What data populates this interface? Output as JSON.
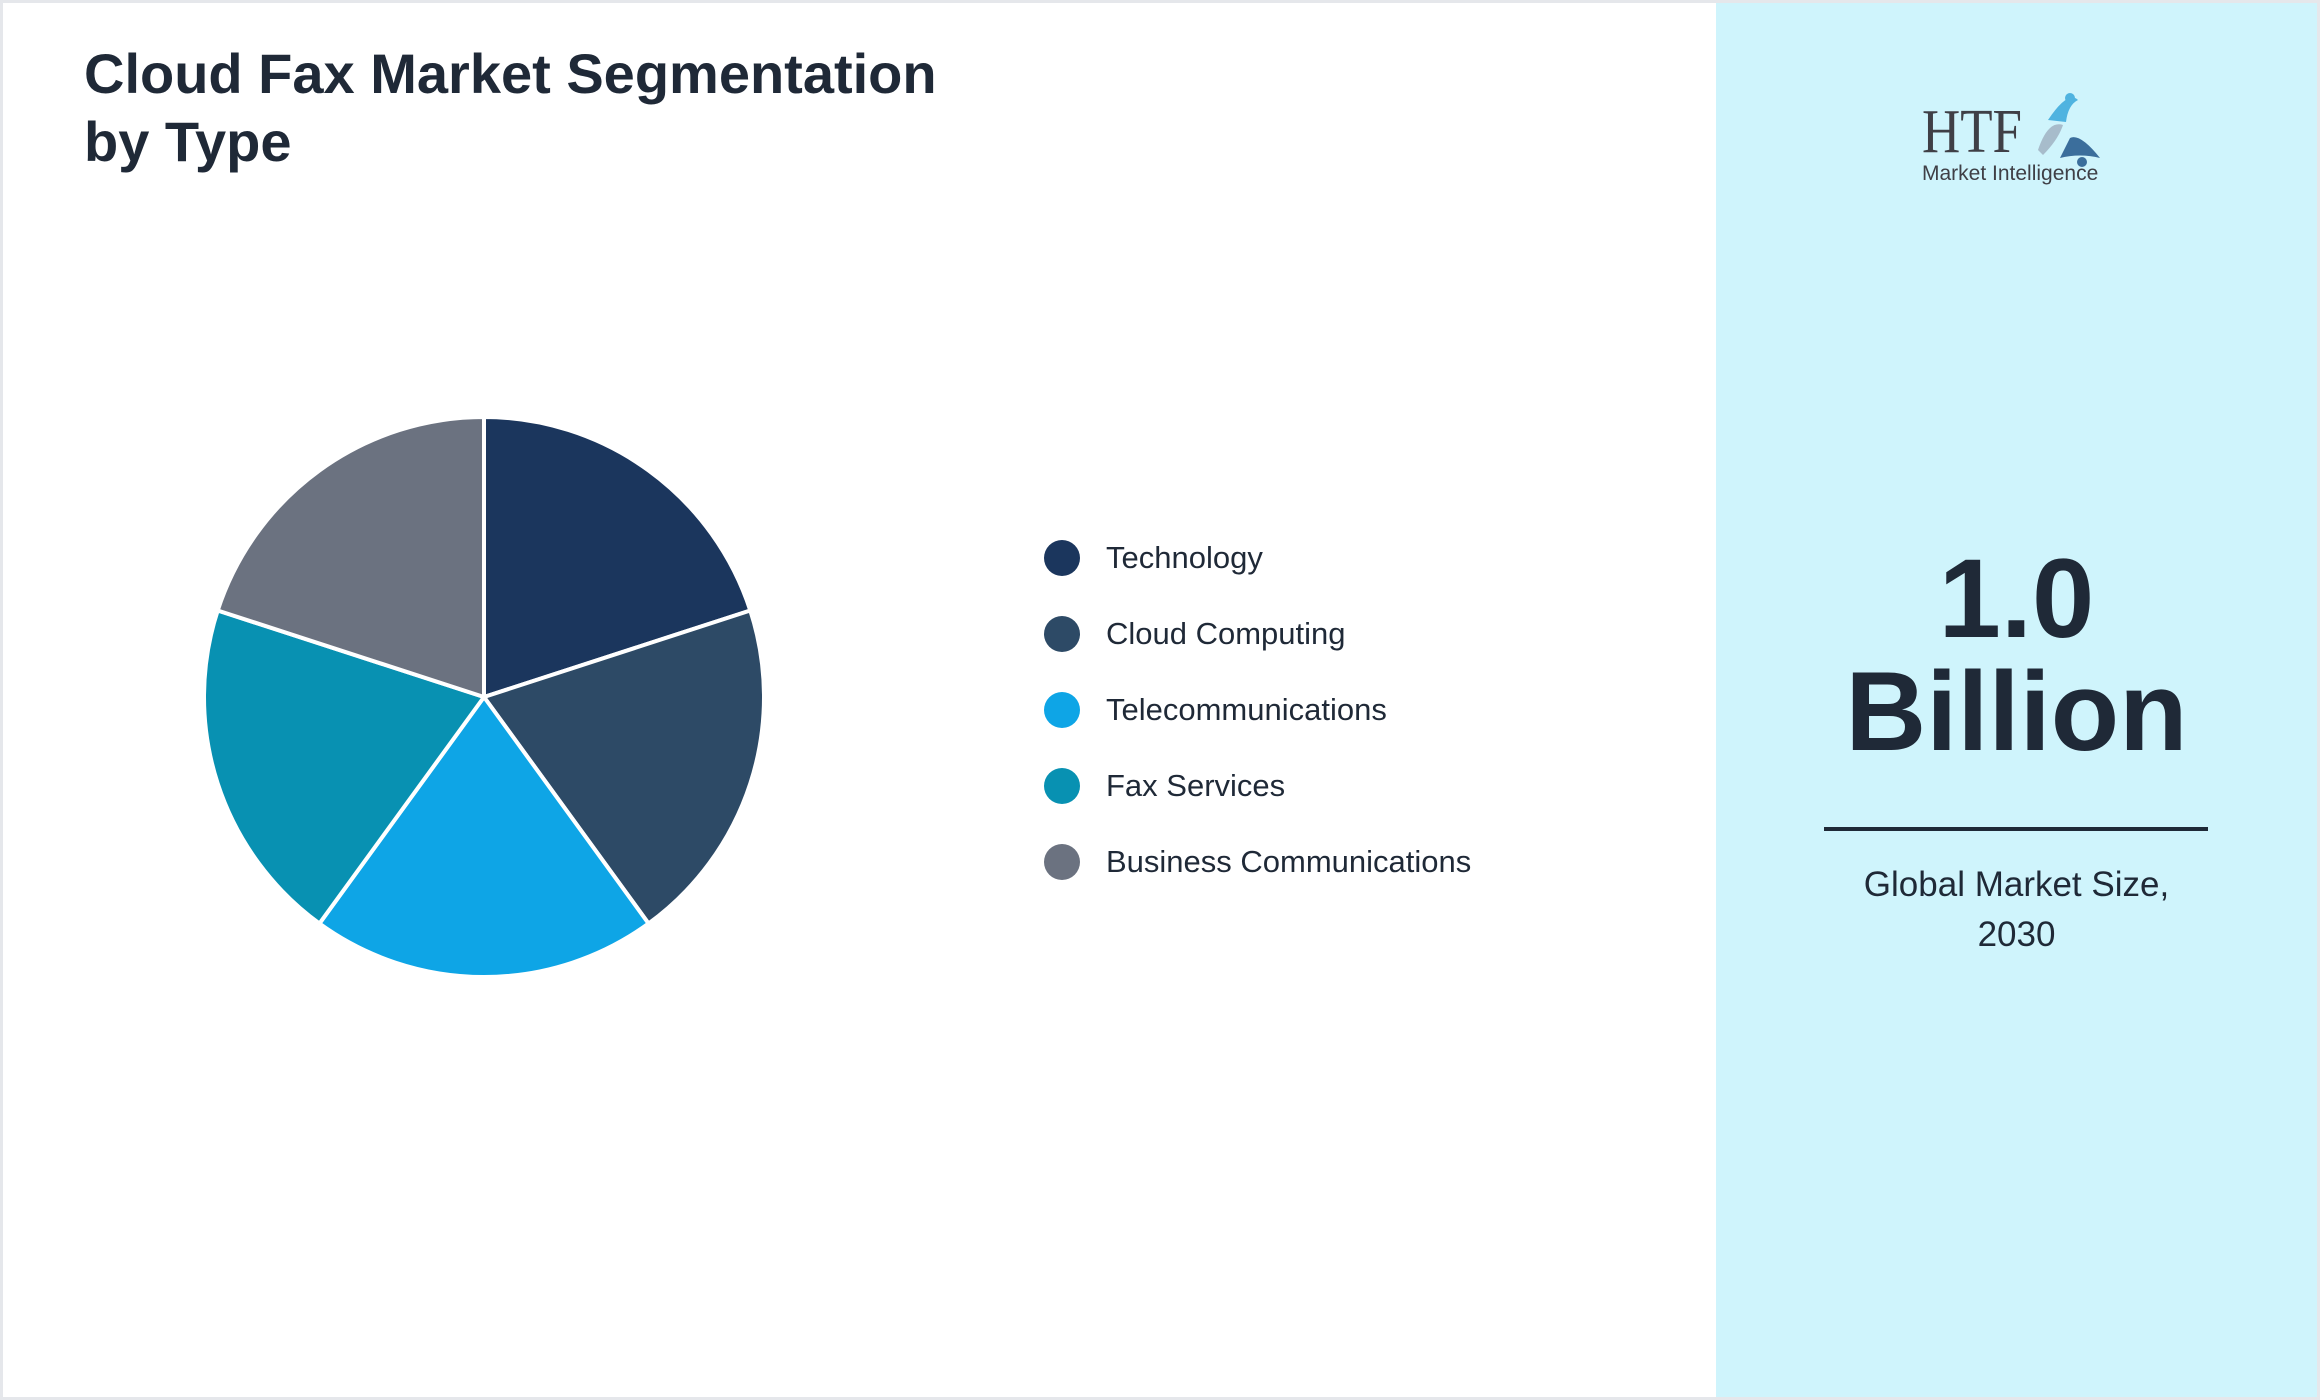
{
  "title_line1": "Cloud Fax Market Segmentation",
  "title_line2": "by Type",
  "logo": {
    "text": "HTF",
    "subtext": "Market Intelligence"
  },
  "stat": {
    "value": "1.0",
    "unit": "Billion",
    "caption_line1": "Global Market Size,",
    "caption_line2": "2030"
  },
  "chart_data": {
    "type": "pie",
    "title": "Cloud Fax Market Segmentation by Type",
    "legend_position": "right",
    "categories": [
      "Technology",
      "Cloud Computing",
      "Telecommunications",
      "Fax Services",
      "Business Communications"
    ],
    "values": [
      20,
      20,
      20,
      20,
      20
    ],
    "colors": [
      "#1b365d",
      "#2d4a66",
      "#0ea5e6",
      "#0891b2",
      "#6b7280"
    ]
  }
}
